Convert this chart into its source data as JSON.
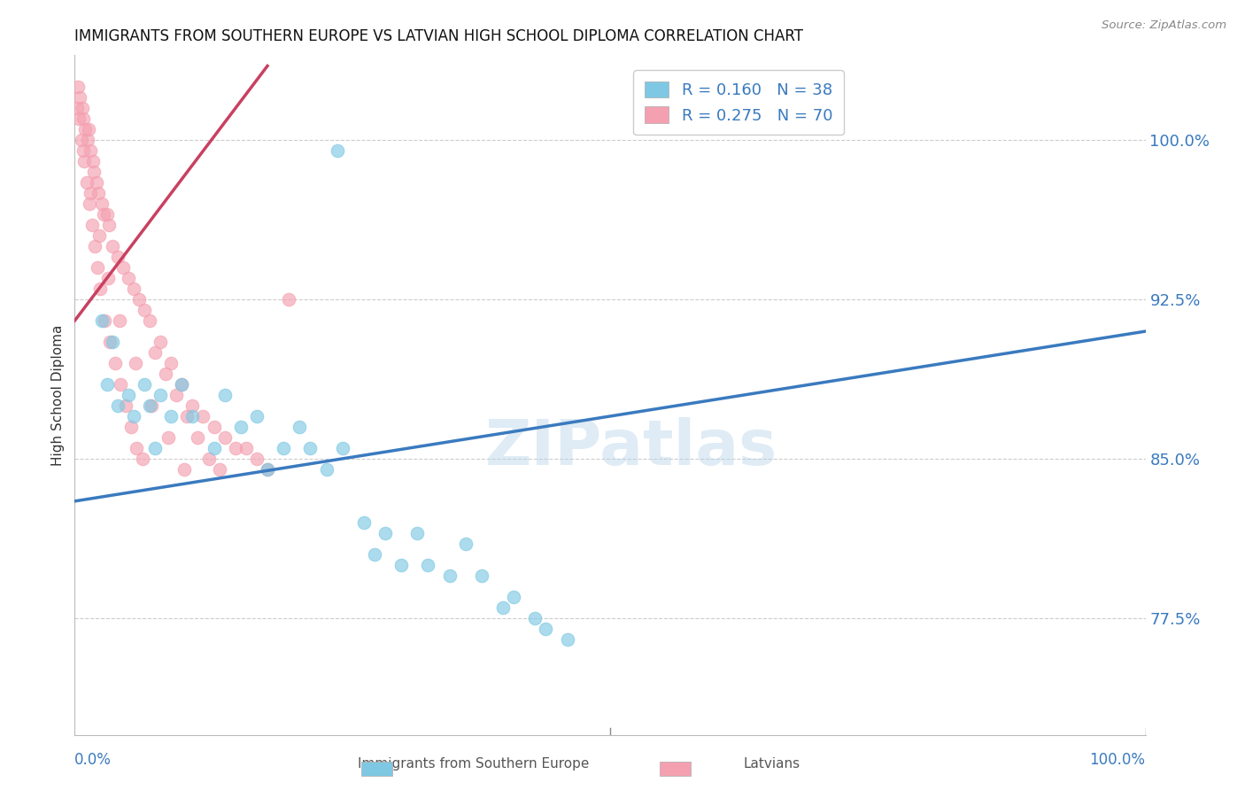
{
  "title": "IMMIGRANTS FROM SOUTHERN EUROPE VS LATVIAN HIGH SCHOOL DIPLOMA CORRELATION CHART",
  "source": "Source: ZipAtlas.com",
  "ylabel": "High School Diploma",
  "yticks": [
    77.5,
    85.0,
    92.5,
    100.0
  ],
  "ytick_labels": [
    "77.5%",
    "85.0%",
    "92.5%",
    "100.0%"
  ],
  "xlim": [
    0.0,
    100.0
  ],
  "ylim": [
    72.0,
    104.0
  ],
  "blue_label": "Immigrants from Southern Europe",
  "pink_label": "Latvians",
  "blue_R": 0.16,
  "blue_N": 38,
  "pink_R": 0.275,
  "pink_N": 70,
  "blue_color": "#7ec8e3",
  "pink_color": "#f4a0b0",
  "blue_line_color": "#3a7abf",
  "pink_line_color": "#c94060",
  "watermark": "ZIPatlas",
  "blue_x": [
    2.5,
    3.0,
    3.5,
    4.0,
    5.0,
    5.5,
    6.5,
    7.0,
    8.0,
    9.0,
    10.0,
    11.0,
    13.0,
    14.0,
    15.5,
    17.0,
    18.0,
    19.5,
    21.0,
    22.0,
    23.5,
    25.0,
    27.0,
    28.0,
    29.0,
    30.5,
    32.0,
    33.0,
    35.0,
    36.5,
    38.0,
    40.0,
    41.0,
    43.0,
    44.0,
    46.0,
    24.5,
    7.5
  ],
  "blue_y": [
    91.5,
    88.5,
    90.5,
    87.5,
    88.0,
    87.0,
    88.5,
    87.5,
    88.0,
    87.0,
    88.5,
    87.0,
    85.5,
    88.0,
    86.5,
    87.0,
    84.5,
    85.5,
    86.5,
    85.5,
    84.5,
    85.5,
    82.0,
    80.5,
    81.5,
    80.0,
    81.5,
    80.0,
    79.5,
    81.0,
    79.5,
    78.0,
    78.5,
    77.5,
    77.0,
    76.5,
    99.5,
    85.5
  ],
  "pink_x": [
    0.3,
    0.5,
    0.7,
    0.8,
    1.0,
    1.2,
    1.3,
    1.5,
    1.7,
    1.8,
    2.0,
    2.2,
    2.5,
    2.7,
    3.0,
    3.2,
    3.5,
    4.0,
    4.5,
    5.0,
    5.5,
    6.0,
    6.5,
    7.0,
    8.0,
    9.0,
    10.0,
    11.0,
    12.0,
    13.0,
    14.0,
    15.0,
    16.0,
    17.0,
    18.0,
    20.0,
    0.4,
    0.6,
    0.9,
    1.1,
    1.4,
    1.6,
    1.9,
    2.1,
    2.4,
    2.8,
    3.3,
    3.8,
    4.3,
    4.8,
    5.3,
    5.8,
    6.3,
    7.5,
    8.5,
    9.5,
    10.5,
    11.5,
    12.5,
    13.5,
    0.2,
    0.8,
    1.5,
    2.3,
    3.1,
    4.2,
    5.7,
    7.2,
    8.7,
    10.2
  ],
  "pink_y": [
    102.5,
    102.0,
    101.5,
    101.0,
    100.5,
    100.0,
    100.5,
    99.5,
    99.0,
    98.5,
    98.0,
    97.5,
    97.0,
    96.5,
    96.5,
    96.0,
    95.0,
    94.5,
    94.0,
    93.5,
    93.0,
    92.5,
    92.0,
    91.5,
    90.5,
    89.5,
    88.5,
    87.5,
    87.0,
    86.5,
    86.0,
    85.5,
    85.5,
    85.0,
    84.5,
    92.5,
    101.0,
    100.0,
    99.0,
    98.0,
    97.0,
    96.0,
    95.0,
    94.0,
    93.0,
    91.5,
    90.5,
    89.5,
    88.5,
    87.5,
    86.5,
    85.5,
    85.0,
    90.0,
    89.0,
    88.0,
    87.0,
    86.0,
    85.0,
    84.5,
    101.5,
    99.5,
    97.5,
    95.5,
    93.5,
    91.5,
    89.5,
    87.5,
    86.0,
    84.5
  ],
  "blue_line_x0": 0.0,
  "blue_line_x1": 100.0,
  "blue_line_y0": 83.0,
  "blue_line_y1": 91.0,
  "pink_line_x0": 0.0,
  "pink_line_x1": 18.0,
  "pink_line_y0": 91.5,
  "pink_line_y1": 103.5
}
